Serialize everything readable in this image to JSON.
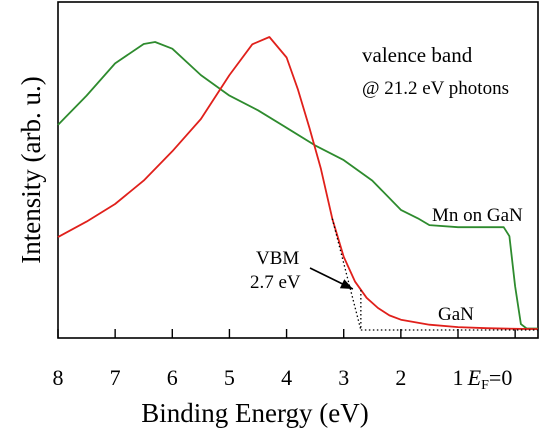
{
  "chart_data": {
    "type": "line",
    "xlabel": "Binding Energy (eV)",
    "ylabel": "Intensity (arb. u.)",
    "x_reversed": true,
    "xlim": [
      8,
      -0.4
    ],
    "ylim": [
      0,
      1
    ],
    "y_ticks_shown": false,
    "grid": false,
    "x_ticks": [
      {
        "value": 8,
        "label": "8"
      },
      {
        "value": 7,
        "label": "7"
      },
      {
        "value": 6,
        "label": "6"
      },
      {
        "value": 5,
        "label": "5"
      },
      {
        "value": 4,
        "label": "4"
      },
      {
        "value": 3,
        "label": "3"
      },
      {
        "value": 2,
        "label": "2"
      },
      {
        "value": 1,
        "label": "1"
      }
    ],
    "ef_tick": {
      "value": 0,
      "label_italic": "E",
      "label_sub": "F",
      "label_tail": "=0"
    },
    "series": [
      {
        "name": "Mn on GaN",
        "color": "#2e8b2e",
        "x": [
          8.0,
          7.5,
          7.0,
          6.5,
          6.3,
          6.0,
          5.5,
          5.0,
          4.5,
          4.0,
          3.5,
          3.0,
          2.5,
          2.0,
          1.7,
          1.5,
          1.0,
          0.5,
          0.2,
          0.1,
          0.0,
          -0.1,
          -0.2,
          -0.4
        ],
        "y": [
          0.7,
          0.8,
          0.91,
          0.976,
          0.983,
          0.96,
          0.87,
          0.8,
          0.75,
          0.69,
          0.63,
          0.58,
          0.51,
          0.41,
          0.381,
          0.358,
          0.351,
          0.351,
          0.351,
          0.32,
          0.15,
          0.02,
          0.005,
          0.005
        ]
      },
      {
        "name": "GaN",
        "color": "#e0201b",
        "x": [
          8.0,
          7.5,
          7.0,
          6.5,
          6.0,
          5.5,
          5.0,
          4.6,
          4.3,
          4.0,
          3.8,
          3.6,
          3.4,
          3.2,
          3.0,
          2.8,
          2.6,
          2.4,
          2.2,
          2.0,
          1.5,
          1.0,
          0.5,
          0.0,
          -0.4
        ],
        "y": [
          0.317,
          0.37,
          0.43,
          0.51,
          0.61,
          0.72,
          0.87,
          0.975,
          1.0,
          0.93,
          0.82,
          0.69,
          0.55,
          0.38,
          0.25,
          0.165,
          0.11,
          0.075,
          0.05,
          0.035,
          0.018,
          0.01,
          0.006,
          0.004,
          0.003
        ]
      }
    ],
    "annotations": {
      "title_line1": "valence band",
      "title_line2": "@ 21.2 eV photons",
      "mn_label": "Mn on GaN",
      "gan_label": "GaN",
      "vbm_line1": "VBM",
      "vbm_line2": "2.7 eV",
      "vbm_value": 2.7,
      "baseline_value": 0.0
    }
  }
}
